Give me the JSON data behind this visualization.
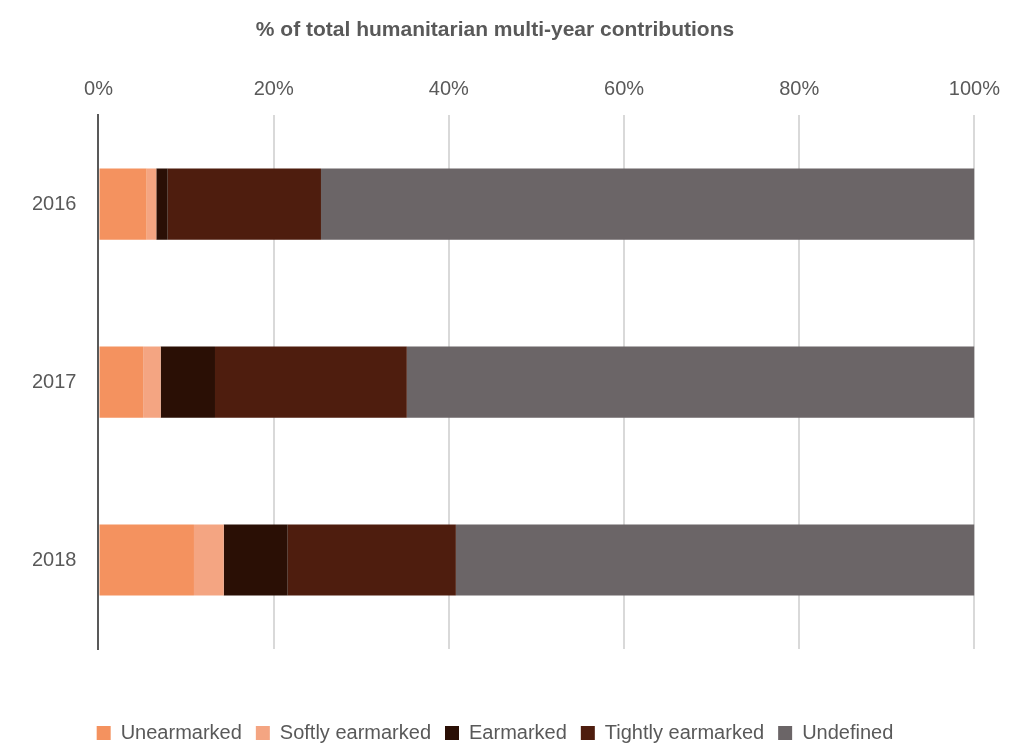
{
  "chart_data": {
    "type": "bar",
    "title": "% of total humanitarian multi-year contributions",
    "orientation": "horizontal",
    "stacked": true,
    "categories": [
      "2016",
      "2017",
      "2018"
    ],
    "series": [
      {
        "name": "Unearmarked",
        "color": "#f4925f",
        "values": [
          5.5,
          5.1,
          10.9
        ]
      },
      {
        "name": "Softly earmarked",
        "color": "#f4a582",
        "values": [
          1.1,
          2.0,
          3.4
        ]
      },
      {
        "name": "Earmarked",
        "color": "#2a0f05",
        "values": [
          1.3,
          6.2,
          7.3
        ]
      },
      {
        "name": "Tightly earmarked",
        "color": "#4e1d0e",
        "values": [
          17.5,
          21.9,
          19.2
        ]
      },
      {
        "name": "Undefined",
        "color": "#6b6567",
        "values": [
          74.6,
          64.8,
          59.2
        ]
      }
    ],
    "xlim": [
      0,
      100
    ],
    "xticks": [
      {
        "value": 0,
        "label": "0%"
      },
      {
        "value": 20,
        "label": "20%"
      },
      {
        "value": 40,
        "label": "40%"
      },
      {
        "value": 60,
        "label": "60%"
      },
      {
        "value": 80,
        "label": "80%"
      },
      {
        "value": 100,
        "label": "100%"
      }
    ],
    "grid": "x",
    "legend": "bottom"
  }
}
